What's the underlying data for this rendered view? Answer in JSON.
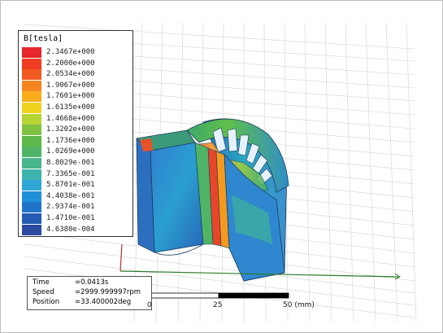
{
  "legend": {
    "title": "B[tesla]",
    "entries": [
      {
        "label": "2.3467e+000",
        "color": "#e6262a"
      },
      {
        "label": "2.2000e+000",
        "color": "#ee3d22"
      },
      {
        "label": "2.0534e+000",
        "color": "#f15a20"
      },
      {
        "label": "1.9067e+000",
        "color": "#f5861f"
      },
      {
        "label": "1.7601e+000",
        "color": "#f9ad1c"
      },
      {
        "label": "1.6135e+000",
        "color": "#f0d21e"
      },
      {
        "label": "1.4668e+000",
        "color": "#b6d334"
      },
      {
        "label": "1.3202e+000",
        "color": "#7fc242"
      },
      {
        "label": "1.1736e+000",
        "color": "#5cb848"
      },
      {
        "label": "1.0269e+000",
        "color": "#4fb465"
      },
      {
        "label": "8.8029e-001",
        "color": "#48b58c"
      },
      {
        "label": "7.3365e-001",
        "color": "#3fb3ae"
      },
      {
        "label": "5.8701e-001",
        "color": "#2fa6d4"
      },
      {
        "label": "4.4038e-001",
        "color": "#2090d8"
      },
      {
        "label": "2.9374e-001",
        "color": "#1f74c9"
      },
      {
        "label": "1.4710e-001",
        "color": "#255cb5"
      },
      {
        "label": "4.6380e-004",
        "color": "#2c4aa0"
      }
    ]
  },
  "info": {
    "time_label": "Time",
    "time_value": "=0.0413s",
    "speed_label": "Speed",
    "speed_value": "=2999.999997rpm",
    "position_label": "Position",
    "position_value": "=33.400002deg"
  },
  "scale": {
    "zero": "0",
    "mid": "25",
    "end": "50 (mm)"
  }
}
